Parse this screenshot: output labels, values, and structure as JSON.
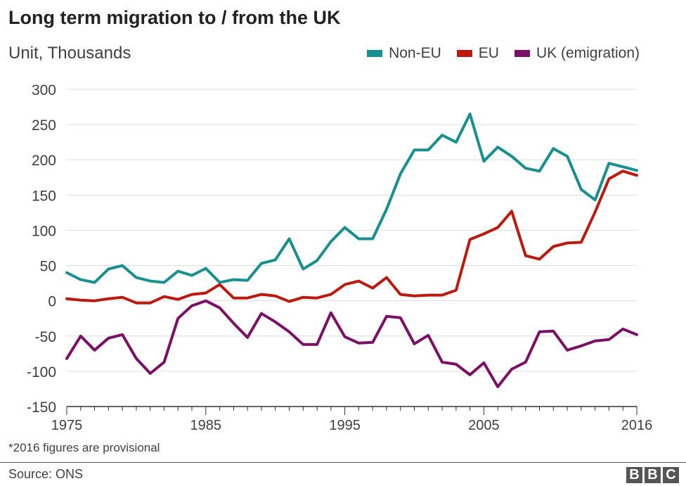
{
  "title": "Long term migration to / from the UK",
  "subtitle": "Unit, Thousands",
  "footnote": "*2016 figures are provisional",
  "source": "Source: ONS",
  "logo_letters": [
    "B",
    "B",
    "C"
  ],
  "chart_data": {
    "type": "line",
    "title": "Long term migration to / from the UK",
    "ylabel": "Unit, Thousands",
    "xlabel": "",
    "ylim": [
      -150,
      300
    ],
    "xlim": [
      1975,
      2016
    ],
    "yticks": [
      300,
      250,
      200,
      150,
      100,
      50,
      0,
      -50,
      -100,
      -150
    ],
    "xticks": [
      "1975",
      "1985",
      "1995",
      "2005",
      "2016"
    ],
    "grid": true,
    "legend_position": "top-right",
    "x": [
      1975,
      1976,
      1977,
      1978,
      1979,
      1980,
      1981,
      1982,
      1983,
      1984,
      1985,
      1986,
      1987,
      1988,
      1989,
      1990,
      1991,
      1992,
      1993,
      1994,
      1995,
      1996,
      1997,
      1998,
      1999,
      2000,
      2001,
      2002,
      2003,
      2004,
      2005,
      2006,
      2007,
      2008,
      2009,
      2010,
      2011,
      2012,
      2013,
      2014,
      2015,
      2016
    ],
    "series": [
      {
        "name": "Non-EU",
        "color": "#1a8f8f",
        "values": [
          40,
          30,
          26,
          45,
          50,
          33,
          28,
          26,
          42,
          36,
          46,
          26,
          30,
          29,
          53,
          58,
          88,
          45,
          57,
          84,
          104,
          88,
          88,
          130,
          180,
          214,
          214,
          235,
          225,
          265,
          198,
          218,
          205,
          188,
          184,
          216,
          205,
          158,
          143,
          195,
          190,
          185
        ]
      },
      {
        "name": "EU",
        "color": "#bb1a10",
        "values": [
          3,
          1,
          0,
          3,
          5,
          -3,
          -3,
          6,
          2,
          9,
          11,
          23,
          4,
          4,
          9,
          7,
          -1,
          5,
          4,
          9,
          23,
          28,
          18,
          33,
          9,
          7,
          8,
          8,
          15,
          87,
          95,
          104,
          127,
          64,
          59,
          77,
          82,
          83,
          126,
          173,
          184,
          178
        ]
      },
      {
        "name": "UK (emigration)",
        "color": "#7b1166",
        "values": [
          -82,
          -50,
          -70,
          -53,
          -48,
          -82,
          -103,
          -87,
          -25,
          -7,
          0,
          -10,
          -32,
          -52,
          -18,
          -30,
          -44,
          -62,
          -62,
          -17,
          -51,
          -60,
          -59,
          -22,
          -24,
          -61,
          -49,
          -87,
          -90,
          -105,
          -88,
          -122,
          -97,
          -87,
          -44,
          -43,
          -70,
          -64,
          -57,
          -55,
          -40,
          -48
        ]
      }
    ]
  }
}
